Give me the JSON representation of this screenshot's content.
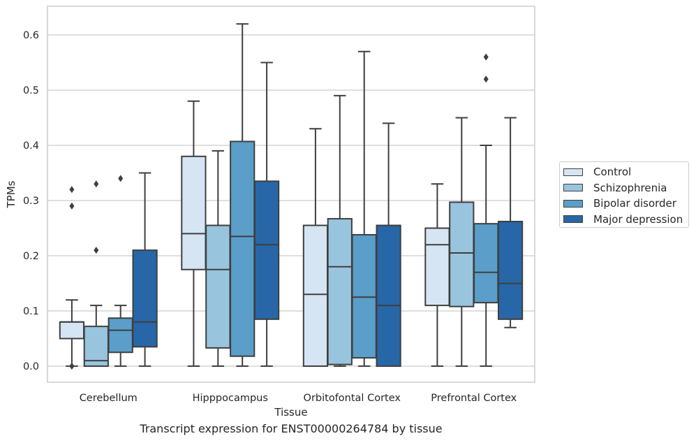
{
  "caption": "Transcript expression for ENST00000264784 by tissue",
  "chart_data": {
    "type": "boxplot",
    "title": "",
    "xlabel": "Tissue",
    "ylabel": "TPMs",
    "ylim": [
      -0.03,
      0.655
    ],
    "yticks": [
      "0.0",
      "0.1",
      "0.2",
      "0.3",
      "0.4",
      "0.5",
      "0.6"
    ],
    "ytick_values": [
      0.0,
      0.1,
      0.2,
      0.3,
      0.4,
      0.5,
      0.6
    ],
    "grid": "horizontal",
    "legend_position": "right",
    "categories": [
      "Cerebellum",
      "Hipppocampus",
      "Orbitofontal Cortex",
      "Prefrontal Cortex"
    ],
    "series": [
      {
        "name": "Control",
        "color": "#d6e5f4",
        "boxes": [
          {
            "whislo": 0.0,
            "q1": 0.05,
            "med": 0.08,
            "q3": 0.08,
            "whishi": 0.12,
            "fliers": [
              0.32,
              0.29,
              0.0,
              0.0
            ]
          },
          {
            "whislo": 0.0,
            "q1": 0.175,
            "med": 0.24,
            "q3": 0.38,
            "whishi": 0.48,
            "fliers": []
          },
          {
            "whislo": 0.0,
            "q1": 0.0,
            "med": 0.13,
            "q3": 0.255,
            "whishi": 0.43,
            "fliers": []
          },
          {
            "whislo": 0.0,
            "q1": 0.11,
            "med": 0.22,
            "q3": 0.25,
            "whishi": 0.33,
            "fliers": []
          }
        ]
      },
      {
        "name": "Schizophrenia",
        "color": "#99c4de",
        "boxes": [
          {
            "whislo": 0.0,
            "q1": 0.0,
            "med": 0.01,
            "q3": 0.072,
            "whishi": 0.11,
            "fliers": [
              0.33,
              0.21
            ]
          },
          {
            "whislo": 0.0,
            "q1": 0.033,
            "med": 0.175,
            "q3": 0.255,
            "whishi": 0.39,
            "fliers": []
          },
          {
            "whislo": 0.0,
            "q1": 0.003,
            "med": 0.18,
            "q3": 0.267,
            "whishi": 0.49,
            "fliers": []
          },
          {
            "whislo": 0.0,
            "q1": 0.108,
            "med": 0.205,
            "q3": 0.297,
            "whishi": 0.45,
            "fliers": []
          }
        ]
      },
      {
        "name": "Bipolar disorder",
        "color": "#5a9ec9",
        "boxes": [
          {
            "whislo": 0.0,
            "q1": 0.025,
            "med": 0.065,
            "q3": 0.087,
            "whishi": 0.11,
            "fliers": [
              0.34
            ]
          },
          {
            "whislo": 0.0,
            "q1": 0.018,
            "med": 0.235,
            "q3": 0.407,
            "whishi": 0.62,
            "fliers": []
          },
          {
            "whislo": 0.0,
            "q1": 0.015,
            "med": 0.125,
            "q3": 0.238,
            "whishi": 0.57,
            "fliers": []
          },
          {
            "whislo": 0.0,
            "q1": 0.115,
            "med": 0.17,
            "q3": 0.258,
            "whishi": 0.4,
            "fliers": [
              0.56,
              0.52
            ]
          }
        ]
      },
      {
        "name": "Major depression",
        "color": "#2767a7",
        "boxes": [
          {
            "whislo": 0.0,
            "q1": 0.035,
            "med": 0.08,
            "q3": 0.21,
            "whishi": 0.35,
            "fliers": []
          },
          {
            "whislo": 0.0,
            "q1": 0.085,
            "med": 0.22,
            "q3": 0.335,
            "whishi": 0.55,
            "fliers": []
          },
          {
            "whislo": 0.0,
            "q1": 0.0,
            "med": 0.11,
            "q3": 0.255,
            "whishi": 0.44,
            "fliers": []
          },
          {
            "whislo": 0.07,
            "q1": 0.085,
            "med": 0.15,
            "q3": 0.262,
            "whishi": 0.45,
            "fliers": []
          }
        ]
      }
    ]
  }
}
